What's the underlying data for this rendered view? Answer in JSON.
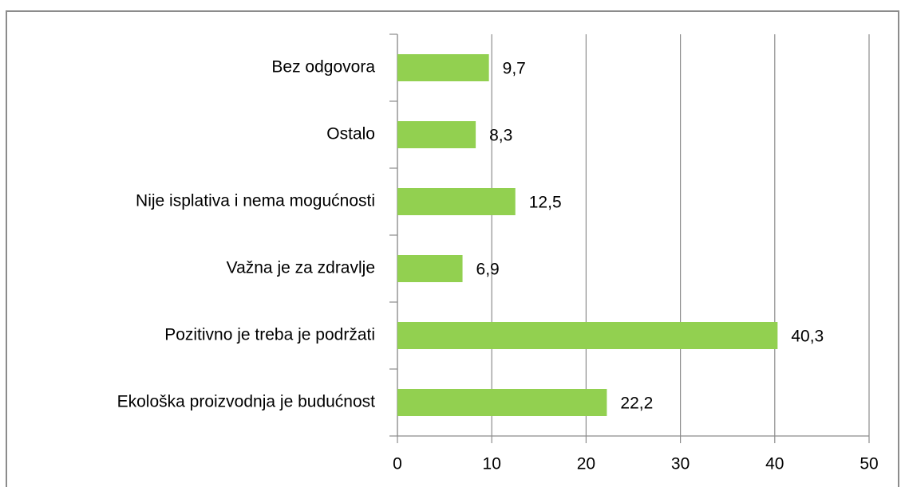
{
  "chart_data": {
    "type": "bar",
    "orientation": "horizontal",
    "categories": [
      "Bez odgovora",
      "Ostalo",
      "Nije isplativa i nema mogućnosti",
      "Važna je za zdravlje",
      "Pozitivno je treba je podržati",
      "Ekološka proizvodnja je budućnost"
    ],
    "values": [
      9.7,
      8.3,
      12.5,
      6.9,
      40.3,
      22.2
    ],
    "value_labels": [
      "9,7",
      "8,3",
      "12,5",
      "6,9",
      "40,3",
      "22,2"
    ],
    "color": "#92d050",
    "xlim": [
      0,
      50
    ],
    "xticks": [
      0,
      10,
      20,
      30,
      40,
      50
    ],
    "grid": true
  }
}
